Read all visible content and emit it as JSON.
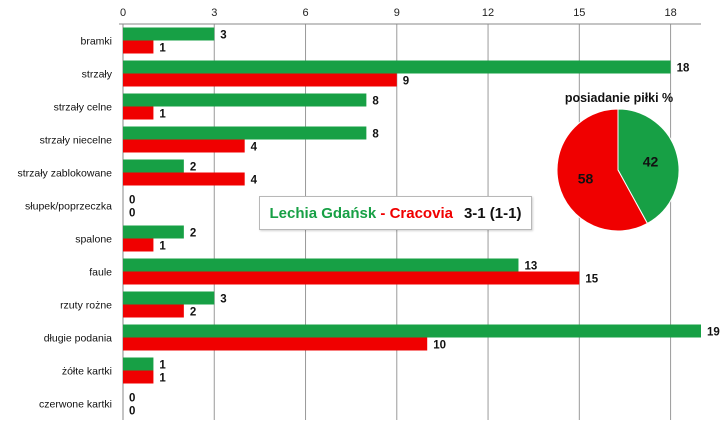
{
  "chart_data": {
    "type": "bar",
    "orientation": "horizontal",
    "categories": [
      "bramki",
      "strzały",
      "strzały celne",
      "strzały niecelne",
      "strzały zablokowane",
      "słupek/poprzeczka",
      "spalone",
      "faule",
      "rzuty rożne",
      "długie podania",
      "żółte kartki",
      "czerwone kartki"
    ],
    "series": [
      {
        "color": "#17a045",
        "values": [
          3,
          18,
          8,
          8,
          2,
          0,
          2,
          13,
          3,
          19,
          1,
          0
        ]
      },
      {
        "color": "#f00000",
        "values": [
          1,
          9,
          1,
          4,
          4,
          0,
          1,
          15,
          2,
          10,
          1,
          0
        ]
      }
    ],
    "x_ticks": [
      0,
      3,
      6,
      9,
      12,
      15,
      18
    ],
    "xlim": [
      0,
      19
    ],
    "x_axis_position": "top",
    "grid": true
  },
  "result": {
    "home": "Lechia Gdańsk",
    "separator": " - ",
    "away": "Cracovia",
    "score": "3-1 (1-1)",
    "home_color": "#17a045",
    "away_color": "#f00000"
  },
  "pie": {
    "title": "posiadanie piłki %",
    "slices": [
      {
        "value": 42,
        "color": "#17a045"
      },
      {
        "value": 58,
        "color": "#f00000"
      }
    ]
  }
}
